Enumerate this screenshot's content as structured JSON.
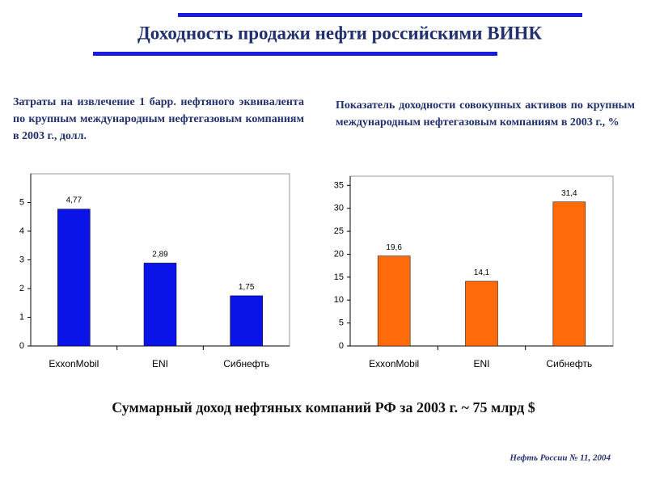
{
  "title": "Доходность продажи нефти российскими ВИНК",
  "summary": "Суммарный доход нефтяных компаний РФ за 2003 г. ~ 75 млрд $",
  "source": "Нефть России № 11, 2004",
  "chart_data": [
    {
      "type": "bar",
      "title": "Затраты на извлечение 1 барр. нефтяного эквивалента по крупным международным нефтегазовым компаниям в 2003 г., долл.",
      "categories": [
        "ExxonMobil",
        "ENI",
        "Сибнефть"
      ],
      "values": [
        4.77,
        2.89,
        1.75
      ],
      "value_labels": [
        "4,77",
        "2,89",
        "1,75"
      ],
      "color": "#0a14e8",
      "ylim": [
        0,
        6
      ],
      "yticks": [
        0,
        1,
        2,
        3,
        4,
        5
      ]
    },
    {
      "type": "bar",
      "title": "Показатель доходности совокупных активов по крупным международным нефтегазовым компаниям в 2003 г., %",
      "categories": [
        "ExxonMobil",
        "ENI",
        "Сибнефть"
      ],
      "values": [
        19.6,
        14.1,
        31.4
      ],
      "value_labels": [
        "19,6",
        "14,1",
        "31,4"
      ],
      "color": "#ff6a0a",
      "ylim": [
        0,
        37
      ],
      "yticks": [
        0,
        5,
        10,
        15,
        20,
        25,
        30,
        35
      ]
    }
  ]
}
